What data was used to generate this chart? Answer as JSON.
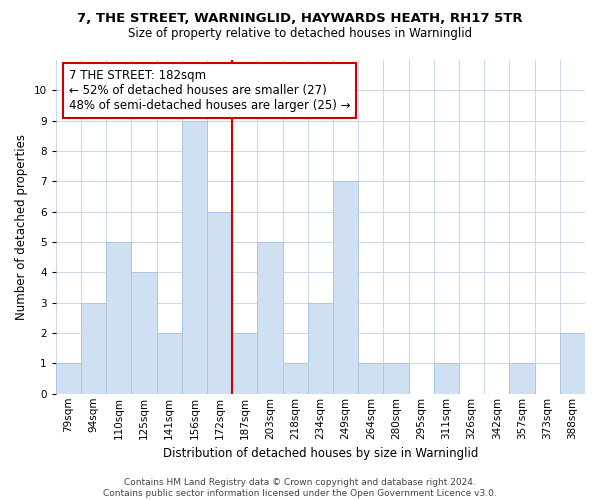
{
  "title": "7, THE STREET, WARNINGLID, HAYWARDS HEATH, RH17 5TR",
  "subtitle": "Size of property relative to detached houses in Warninglid",
  "xlabel": "Distribution of detached houses by size in Warninglid",
  "ylabel": "Number of detached properties",
  "bar_labels": [
    "79sqm",
    "94sqm",
    "110sqm",
    "125sqm",
    "141sqm",
    "156sqm",
    "172sqm",
    "187sqm",
    "203sqm",
    "218sqm",
    "234sqm",
    "249sqm",
    "264sqm",
    "280sqm",
    "295sqm",
    "311sqm",
    "326sqm",
    "342sqm",
    "357sqm",
    "373sqm",
    "388sqm"
  ],
  "bar_heights": [
    1,
    3,
    5,
    4,
    2,
    9,
    6,
    2,
    5,
    1,
    3,
    7,
    1,
    1,
    0,
    1,
    0,
    0,
    1,
    0,
    2
  ],
  "bar_color": "#cfe0f2",
  "bar_edge_color": "#a8c4e0",
  "vline_color": "#cc0000",
  "annotation_text": "7 THE STREET: 182sqm\n← 52% of detached houses are smaller (27)\n48% of semi-detached houses are larger (25) →",
  "annotation_box_edge": "#cc0000",
  "annotation_box_face": "#ffffff",
  "ylim": [
    0,
    11
  ],
  "yticks": [
    0,
    1,
    2,
    3,
    4,
    5,
    6,
    7,
    8,
    9,
    10
  ],
  "footer": "Contains HM Land Registry data © Crown copyright and database right 2024.\nContains public sector information licensed under the Open Government Licence v3.0.",
  "background_color": "#ffffff",
  "grid_color": "#c8d8ea",
  "title_fontsize": 9.5,
  "subtitle_fontsize": 8.5,
  "xlabel_fontsize": 8.5,
  "ylabel_fontsize": 8.5,
  "tick_fontsize": 7.5,
  "annotation_fontsize": 8.5,
  "footer_fontsize": 6.5
}
